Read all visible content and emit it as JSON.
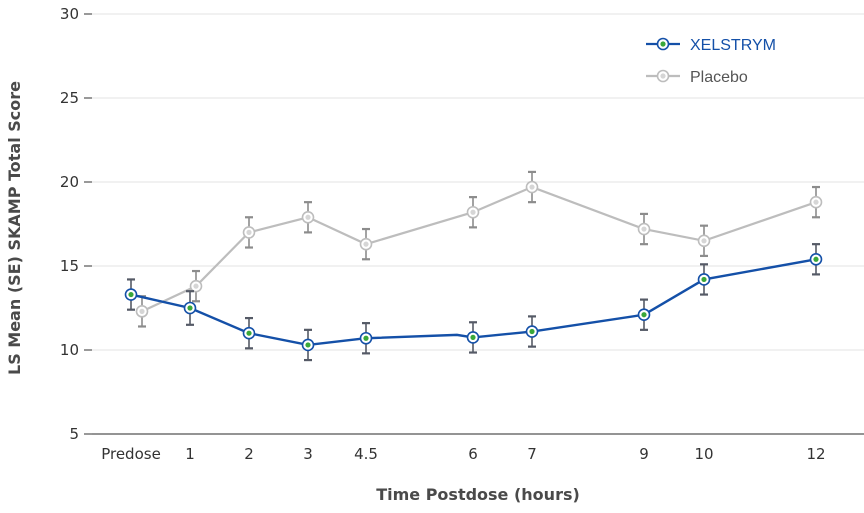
{
  "chart_data": {
    "type": "line",
    "categories": [
      "Predose",
      "1",
      "2",
      "3",
      "4.5",
      "6",
      "7",
      "9",
      "10",
      "12"
    ],
    "xlabel": "Time Postdose (hours)",
    "ylabel": "LS Mean (SE) SKAMP Total Score",
    "ylim": [
      5,
      30
    ],
    "yticks": [
      5,
      10,
      15,
      20,
      25,
      30
    ],
    "grid": true,
    "legend_position": "top-right",
    "series": [
      {
        "name": "XELSTRYM",
        "color": "#1450a8",
        "marker_fill": "#3aa83a",
        "values": [
          13.3,
          12.5,
          11.0,
          10.3,
          10.7,
          10.75,
          11.1,
          12.1,
          14.2,
          15.4
        ],
        "se": [
          0.9,
          1.0,
          0.9,
          0.9,
          0.9,
          0.9,
          0.9,
          0.9,
          0.9,
          0.9
        ],
        "extra_vertices": [
          {
            "x": 4.85,
            "y": 10.9
          }
        ]
      },
      {
        "name": "Placebo",
        "color": "#bdbdbd",
        "marker_fill": "#d6d6d6",
        "values": [
          12.3,
          13.8,
          17.0,
          17.9,
          16.3,
          18.2,
          19.7,
          17.2,
          16.5,
          18.8
        ],
        "se": [
          0.9,
          0.9,
          0.9,
          0.9,
          0.9,
          0.9,
          0.9,
          0.9,
          0.9,
          0.9
        ],
        "extra_vertices": []
      }
    ]
  }
}
